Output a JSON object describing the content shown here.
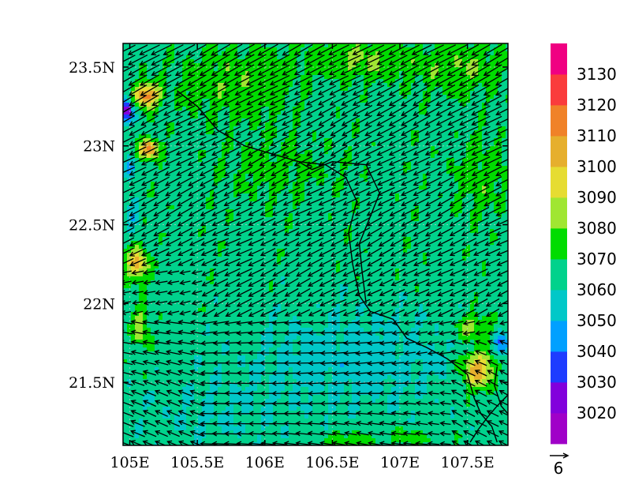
{
  "chart_data": {
    "type": "heatmap",
    "title": "",
    "xlabel": "",
    "ylabel": "",
    "xlim": [
      104.95,
      107.8
    ],
    "ylim": [
      21.1,
      23.65
    ],
    "x_ticks": [
      105,
      105.5,
      106,
      106.5,
      107,
      107.5
    ],
    "x_tick_labels": [
      "105E",
      "105.5E",
      "106E",
      "106.5E",
      "107E",
      "107.5E"
    ],
    "y_ticks": [
      21.5,
      22,
      22.5,
      23,
      23.5
    ],
    "y_tick_labels": [
      "21.5N",
      "22N",
      "22.5N",
      "23N",
      "23.5N"
    ],
    "grid": true,
    "colorbar": {
      "placement": "right",
      "levels": [
        3020,
        3030,
        3040,
        3050,
        3060,
        3070,
        3080,
        3090,
        3100,
        3110,
        3120,
        3130
      ],
      "level_labels": [
        "3020",
        "3030",
        "3040",
        "3050",
        "3060",
        "3070",
        "3080",
        "3090",
        "3100",
        "3110",
        "3120",
        "3130"
      ],
      "colors": [
        "#a000c8",
        "#8200dc",
        "#1e3cff",
        "#00a0ff",
        "#00c8c8",
        "#00d28c",
        "#00dc00",
        "#a0e632",
        "#e6dc32",
        "#e6af2d",
        "#f08228",
        "#fa3c3c",
        "#f00082"
      ]
    },
    "field_min_visible": 3020,
    "field_max_visible": 3125,
    "vector_field": {
      "type": "wind_vectors",
      "dominant_direction": "westward",
      "reference_vector": {
        "magnitude": 6,
        "label": "6"
      }
    }
  },
  "figure": {
    "background_color": "#ffffff",
    "frame_color": "#000000",
    "grid_color": "#c8c8c8",
    "coastline_color": "#000000",
    "vector_color": "#000000"
  }
}
